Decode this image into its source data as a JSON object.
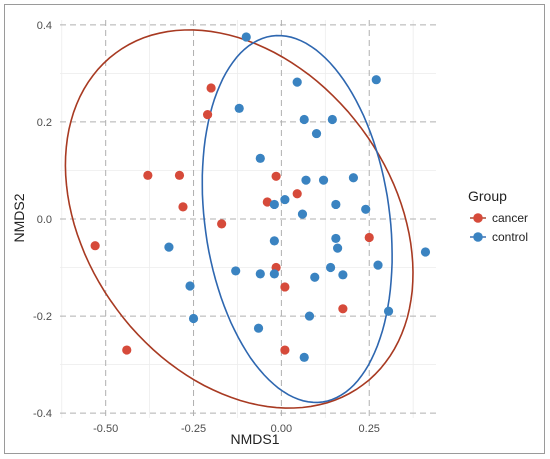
{
  "chart_data": {
    "type": "scatter",
    "title": "",
    "xlabel": "NMDS1",
    "ylabel": "NMDS2",
    "xlim": [
      -0.63,
      0.44
    ],
    "ylim": [
      -0.41,
      0.41
    ],
    "x_ticks": [
      -0.5,
      -0.25,
      0,
      0.25
    ],
    "x_tick_labels": [
      "-0.50",
      "-0.25",
      "0.00",
      "0.25"
    ],
    "y_ticks": [
      -0.4,
      -0.2,
      0,
      0.2,
      0.4
    ],
    "y_tick_labels": [
      "-0.4",
      "-0.2",
      "0.0",
      "0.2",
      "0.4"
    ],
    "grid": true,
    "legend": {
      "title": "Group",
      "position": "right"
    },
    "series": [
      {
        "name": "cancer",
        "color": "#D64A3A",
        "ellipse_color": "#A83A22",
        "points": [
          [
            -0.53,
            -0.055
          ],
          [
            -0.44,
            -0.27
          ],
          [
            -0.38,
            0.09
          ],
          [
            -0.29,
            0.09
          ],
          [
            -0.28,
            0.025
          ],
          [
            -0.2,
            0.27
          ],
          [
            -0.21,
            0.215
          ],
          [
            -0.17,
            -0.01
          ],
          [
            -0.04,
            0.035
          ],
          [
            -0.015,
            0.088
          ],
          [
            -0.015,
            -0.1
          ],
          [
            0.01,
            -0.14
          ],
          [
            0.045,
            0.052
          ],
          [
            0.01,
            -0.27
          ],
          [
            0.175,
            -0.185
          ],
          [
            0.25,
            -0.038
          ]
        ]
      },
      {
        "name": "control",
        "color": "#3A83C1",
        "ellipse_color": "#2E67B0",
        "points": [
          [
            -0.1,
            0.375
          ],
          [
            -0.12,
            0.228
          ],
          [
            -0.32,
            -0.058
          ],
          [
            -0.26,
            -0.138
          ],
          [
            -0.25,
            -0.205
          ],
          [
            -0.13,
            -0.107
          ],
          [
            -0.06,
            0.125
          ],
          [
            -0.06,
            -0.113
          ],
          [
            -0.02,
            -0.045
          ],
          [
            -0.02,
            -0.113
          ],
          [
            -0.02,
            0.03
          ],
          [
            0.01,
            0.04
          ],
          [
            0.045,
            0.282
          ],
          [
            0.065,
            0.205
          ],
          [
            0.1,
            0.176
          ],
          [
            0.145,
            0.205
          ],
          [
            0.07,
            0.08
          ],
          [
            0.12,
            0.08
          ],
          [
            0.06,
            0.01
          ],
          [
            0.155,
            0.03
          ],
          [
            0.205,
            0.085
          ],
          [
            0.24,
            0.02
          ],
          [
            0.155,
            -0.04
          ],
          [
            0.16,
            -0.06
          ],
          [
            0.14,
            -0.1
          ],
          [
            0.175,
            -0.115
          ],
          [
            0.095,
            -0.12
          ],
          [
            0.08,
            -0.2
          ],
          [
            0.065,
            -0.285
          ],
          [
            -0.065,
            -0.225
          ],
          [
            0.27,
            0.287
          ],
          [
            0.275,
            -0.095
          ],
          [
            0.305,
            -0.19
          ],
          [
            0.41,
            -0.068
          ]
        ]
      }
    ],
    "ellipses": [
      {
        "series": "cancer",
        "center": [
          -0.12,
          0.0
        ],
        "radii": [
          0.52,
          0.355
        ],
        "rotation_deg": -25
      },
      {
        "series": "control",
        "center": [
          0.045,
          -0.0
        ],
        "radii": [
          0.26,
          0.385
        ],
        "rotation_deg": 15
      }
    ]
  }
}
